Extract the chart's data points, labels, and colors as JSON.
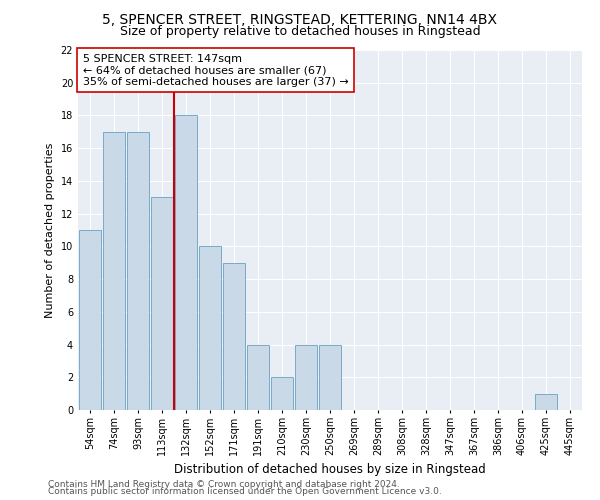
{
  "title1": "5, SPENCER STREET, RINGSTEAD, KETTERING, NN14 4BX",
  "title2": "Size of property relative to detached houses in Ringstead",
  "xlabel": "Distribution of detached houses by size in Ringstead",
  "ylabel": "Number of detached properties",
  "categories": [
    "54sqm",
    "74sqm",
    "93sqm",
    "113sqm",
    "132sqm",
    "152sqm",
    "171sqm",
    "191sqm",
    "210sqm",
    "230sqm",
    "250sqm",
    "269sqm",
    "289sqm",
    "308sqm",
    "328sqm",
    "347sqm",
    "367sqm",
    "386sqm",
    "406sqm",
    "425sqm",
    "445sqm"
  ],
  "values": [
    11,
    17,
    17,
    13,
    18,
    10,
    9,
    4,
    2,
    4,
    4,
    0,
    0,
    0,
    0,
    0,
    0,
    0,
    0,
    1,
    0
  ],
  "bar_color": "#c9d9e8",
  "bar_edge_color": "#7aaac8",
  "ref_line_color": "#cc0000",
  "ref_line_x": 3.5,
  "annotation_text": "5 SPENCER STREET: 147sqm\n← 64% of detached houses are smaller (67)\n35% of semi-detached houses are larger (37) →",
  "annotation_box_color": "#ffffff",
  "annotation_box_edge": "#cc0000",
  "ylim": [
    0,
    22
  ],
  "yticks": [
    0,
    2,
    4,
    6,
    8,
    10,
    12,
    14,
    16,
    18,
    20,
    22
  ],
  "background_color": "#e8eef4",
  "grid_color": "#ffffff",
  "footer1": "Contains HM Land Registry data © Crown copyright and database right 2024.",
  "footer2": "Contains public sector information licensed under the Open Government Licence v3.0.",
  "title1_fontsize": 10,
  "title2_fontsize": 9,
  "xlabel_fontsize": 8.5,
  "ylabel_fontsize": 8,
  "tick_fontsize": 7,
  "annotation_fontsize": 8,
  "footer_fontsize": 6.5
}
